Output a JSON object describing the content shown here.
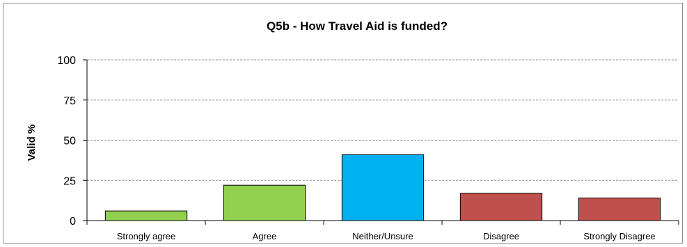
{
  "chart_data": {
    "type": "bar",
    "title": "Q5b - How Travel Aid is funded?",
    "ylabel": "Valid %",
    "xlabel": "",
    "ylim": [
      0,
      100
    ],
    "yticks": [
      "0",
      "25",
      "50",
      "75",
      "100"
    ],
    "grid": "horizontal dashed",
    "categories": [
      "Strongly agree",
      "Agree",
      "Neither/Unsure",
      "Disagree",
      "Strongly Disagree"
    ],
    "values": [
      6,
      22,
      41,
      17,
      14
    ],
    "colors": [
      "#92d050",
      "#92d050",
      "#00b0f0",
      "#c0504d",
      "#c0504d"
    ]
  }
}
